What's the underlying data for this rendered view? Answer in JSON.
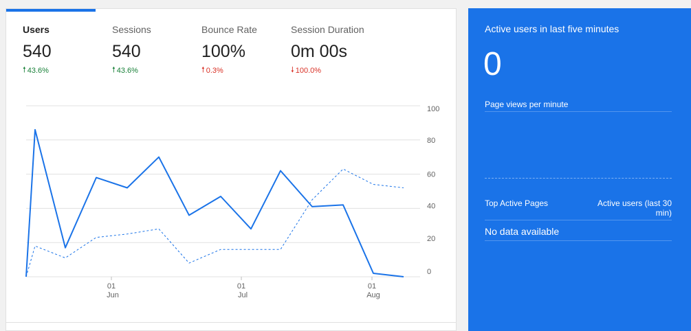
{
  "metrics": [
    {
      "label": "Users",
      "value": "540",
      "change": "43.6%",
      "direction": "up",
      "color": "#188038",
      "active": true
    },
    {
      "label": "Sessions",
      "value": "540",
      "change": "43.6%",
      "direction": "up",
      "color": "#188038"
    },
    {
      "label": "Bounce Rate",
      "value": "100%",
      "change": "0.3%",
      "direction": "up",
      "color": "#d93025"
    },
    {
      "label": "Session Duration",
      "value": "0m 00s",
      "change": "100.0%",
      "direction": "down",
      "color": "#d93025"
    }
  ],
  "chart_data": {
    "type": "line",
    "ylim": [
      0,
      100
    ],
    "y_ticks": [
      "100",
      "80",
      "60",
      "40",
      "20",
      "0"
    ],
    "x_tick_labels": [
      {
        "day": "01",
        "month": "Jun"
      },
      {
        "day": "01",
        "month": "Jul"
      },
      {
        "day": "01",
        "month": "Aug"
      }
    ],
    "grid": true,
    "series": [
      {
        "style": "solid",
        "color": "#1a73e8",
        "values": [
          0,
          86,
          17,
          58,
          52,
          70,
          36,
          47,
          28,
          62,
          41,
          42,
          2,
          0
        ]
      },
      {
        "style": "dashed",
        "color": "#1a73e8",
        "values": [
          0,
          18,
          11,
          23,
          25,
          28,
          8,
          16,
          16,
          16,
          45,
          63,
          54,
          52
        ]
      }
    ]
  },
  "realtime": {
    "title": "Active users in last five minutes",
    "count": "0",
    "pageviews_label": "Page views per minute",
    "table": {
      "col1": "Top Active Pages",
      "col2": "Active users (last 30 min)",
      "empty": "No data available"
    },
    "background": "#1a73e8"
  }
}
